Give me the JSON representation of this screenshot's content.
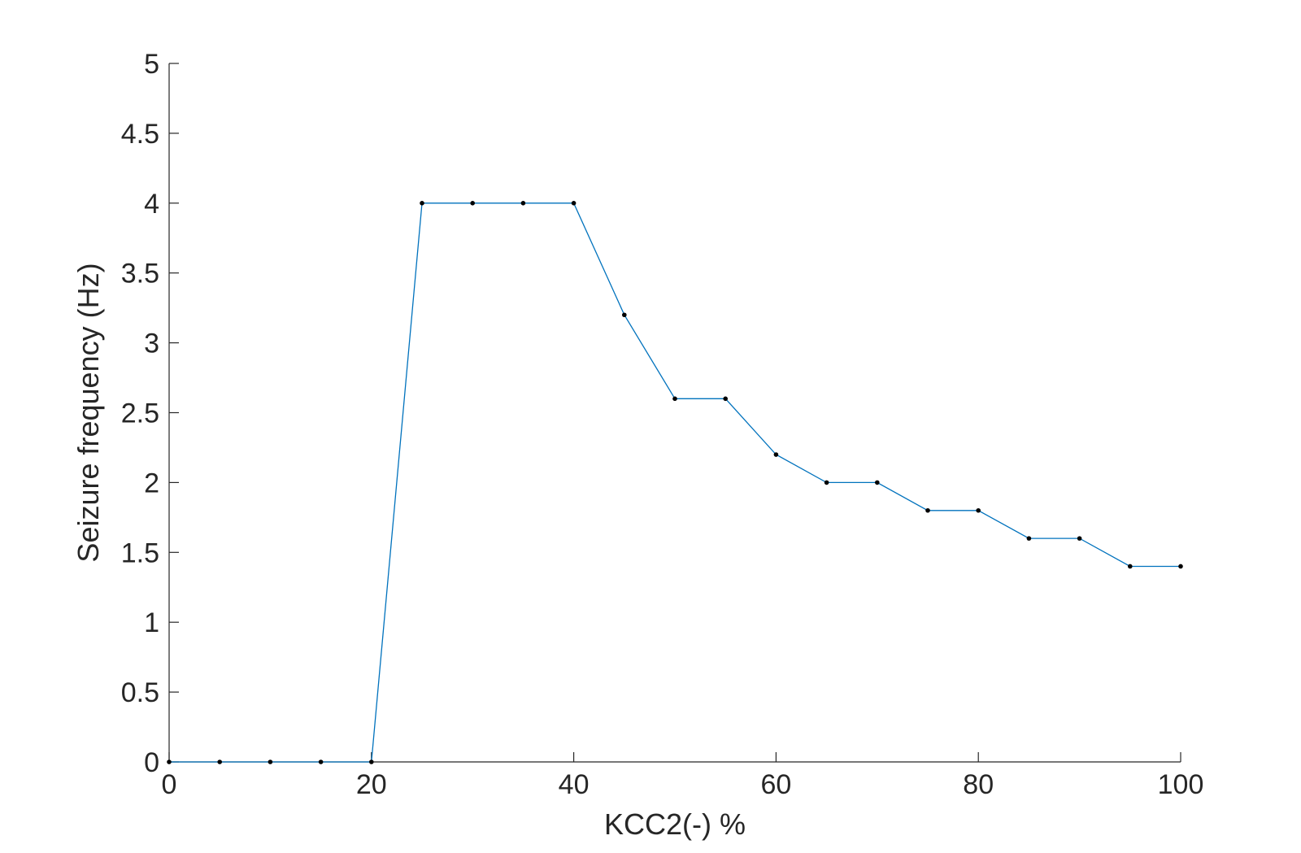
{
  "chart_data": {
    "type": "line",
    "title": "",
    "xlabel": "KCC2(-) %",
    "ylabel": "Seizure frequency (Hz)",
    "xlim": [
      0,
      100
    ],
    "ylim": [
      0,
      5
    ],
    "xticks": [
      0,
      20,
      40,
      60,
      80,
      100
    ],
    "xtick_labels": [
      "0",
      "20",
      "40",
      "60",
      "80",
      "100"
    ],
    "yticks": [
      0,
      0.5,
      1,
      1.5,
      2,
      2.5,
      3,
      3.5,
      4,
      4.5,
      5
    ],
    "ytick_labels": [
      "0",
      "0.5",
      "1",
      "1.5",
      "2",
      "2.5",
      "3",
      "3.5",
      "4",
      "4.5",
      "5"
    ],
    "grid": false,
    "legend": "none",
    "series": [
      {
        "color": "#0072BD",
        "marker_color": "#000000",
        "x": [
          0,
          5,
          10,
          15,
          20,
          25,
          30,
          35,
          40,
          45,
          50,
          55,
          60,
          65,
          70,
          75,
          80,
          85,
          90,
          95,
          100
        ],
        "y": [
          0,
          0,
          0,
          0,
          0,
          4,
          4,
          4,
          4,
          3.2,
          2.6,
          2.6,
          2.2,
          2,
          2,
          1.8,
          1.8,
          1.6,
          1.6,
          1.4,
          1.4
        ]
      }
    ]
  }
}
